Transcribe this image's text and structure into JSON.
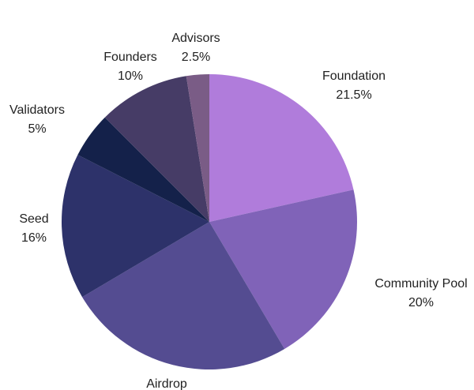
{
  "chart_data": {
    "type": "pie",
    "title": "",
    "slices": [
      {
        "label": "Foundation",
        "percent_label": "21.5%",
        "value": 21.5,
        "color": "#b07cdb"
      },
      {
        "label": "Community Pool",
        "percent_label": "20%",
        "value": 20,
        "color": "#8063b8"
      },
      {
        "label": "Airdrop",
        "percent_label": "",
        "value": 25,
        "color": "#544c91"
      },
      {
        "label": "Seed",
        "percent_label": "16%",
        "value": 16,
        "color": "#2d326a"
      },
      {
        "label": "Validators",
        "percent_label": "5%",
        "value": 5,
        "color": "#14214a"
      },
      {
        "label": "Founders",
        "percent_label": "10%",
        "value": 10,
        "color": "#463c66"
      },
      {
        "label": "Advisors",
        "percent_label": "2.5%",
        "value": 2.5,
        "color": "#7a5c86"
      }
    ]
  }
}
